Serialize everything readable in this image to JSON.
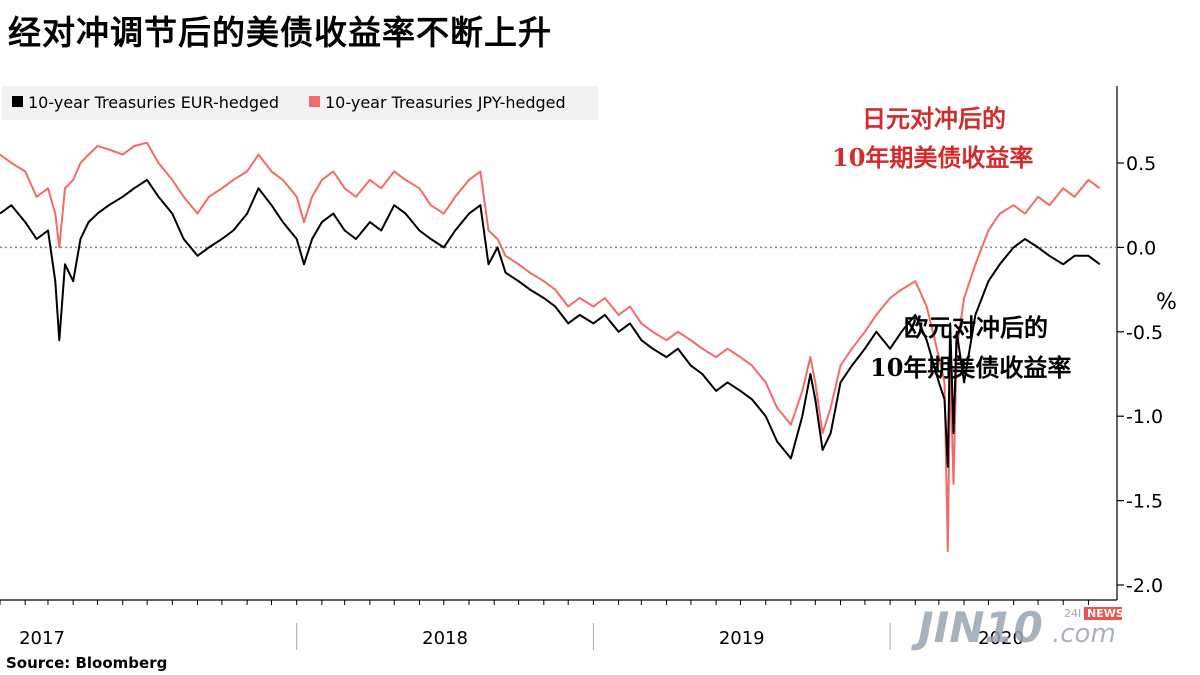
{
  "title": "经对冲调节后的美债收益率不断上升",
  "source": "Source:  Bloomberg",
  "watermark": {
    "brand": "JIN10",
    "suffix": ".com",
    "tag_left": "24I",
    "tag_right": "NEWS"
  },
  "chart_data": {
    "type": "line",
    "title": "经对冲调节后的美债收益率不断上升",
    "y_unit": "%",
    "ylim": [
      -2.0,
      0.8
    ],
    "y_ticks": [
      0.5,
      0.0,
      -0.5,
      -1.0,
      -1.5,
      -2.0
    ],
    "y_tick_labels": [
      "0.5",
      "0.0",
      "-0.5",
      "-1.0",
      "-1.5",
      "-2.0"
    ],
    "x_range": [
      "2017-01-01",
      "2020-09-30"
    ],
    "year_labels": [
      "2017",
      "2018",
      "2019",
      "2020"
    ],
    "zero_line": "dotted",
    "legend": {
      "placement": "top-left"
    },
    "annotations": [
      {
        "text": [
          "日元对冲后的",
          "10年期美债收益率"
        ],
        "color": "#d12b2b",
        "series": "JPY"
      },
      {
        "text": [
          "欧元对冲后的",
          "10年期美债收益率"
        ],
        "color": "#000000",
        "series": "EUR"
      }
    ],
    "series": [
      {
        "name": "10-year Treasuries EUR-hedged",
        "color": "#000000",
        "points": [
          [
            "2017-01-01",
            0.2
          ],
          [
            "2017-01-15",
            0.25
          ],
          [
            "2017-02-01",
            0.15
          ],
          [
            "2017-02-15",
            0.05
          ],
          [
            "2017-03-01",
            0.1
          ],
          [
            "2017-03-10",
            -0.2
          ],
          [
            "2017-03-15",
            -0.55
          ],
          [
            "2017-03-22",
            -0.1
          ],
          [
            "2017-04-01",
            -0.2
          ],
          [
            "2017-04-10",
            0.05
          ],
          [
            "2017-04-20",
            0.15
          ],
          [
            "2017-05-01",
            0.2
          ],
          [
            "2017-05-15",
            0.25
          ],
          [
            "2017-06-01",
            0.3
          ],
          [
            "2017-06-15",
            0.35
          ],
          [
            "2017-07-01",
            0.4
          ],
          [
            "2017-07-15",
            0.3
          ],
          [
            "2017-08-01",
            0.2
          ],
          [
            "2017-08-15",
            0.05
          ],
          [
            "2017-09-01",
            -0.05
          ],
          [
            "2017-09-15",
            0.0
          ],
          [
            "2017-10-01",
            0.05
          ],
          [
            "2017-10-15",
            0.1
          ],
          [
            "2017-11-01",
            0.2
          ],
          [
            "2017-11-15",
            0.35
          ],
          [
            "2017-12-01",
            0.25
          ],
          [
            "2017-12-15",
            0.15
          ],
          [
            "2018-01-01",
            0.05
          ],
          [
            "2018-01-10",
            -0.1
          ],
          [
            "2018-01-20",
            0.05
          ],
          [
            "2018-02-01",
            0.15
          ],
          [
            "2018-02-15",
            0.2
          ],
          [
            "2018-03-01",
            0.1
          ],
          [
            "2018-03-15",
            0.05
          ],
          [
            "2018-04-01",
            0.15
          ],
          [
            "2018-04-15",
            0.1
          ],
          [
            "2018-05-01",
            0.25
          ],
          [
            "2018-05-15",
            0.2
          ],
          [
            "2018-06-01",
            0.1
          ],
          [
            "2018-06-15",
            0.05
          ],
          [
            "2018-07-01",
            0.0
          ],
          [
            "2018-07-15",
            0.1
          ],
          [
            "2018-08-01",
            0.2
          ],
          [
            "2018-08-15",
            0.25
          ],
          [
            "2018-08-25",
            -0.1
          ],
          [
            "2018-09-05",
            0.0
          ],
          [
            "2018-09-15",
            -0.15
          ],
          [
            "2018-10-01",
            -0.2
          ],
          [
            "2018-10-15",
            -0.25
          ],
          [
            "2018-11-01",
            -0.3
          ],
          [
            "2018-11-15",
            -0.35
          ],
          [
            "2018-12-01",
            -0.45
          ],
          [
            "2018-12-15",
            -0.4
          ],
          [
            "2019-01-01",
            -0.45
          ],
          [
            "2019-01-15",
            -0.4
          ],
          [
            "2019-02-01",
            -0.5
          ],
          [
            "2019-02-15",
            -0.45
          ],
          [
            "2019-03-01",
            -0.55
          ],
          [
            "2019-03-15",
            -0.6
          ],
          [
            "2019-04-01",
            -0.65
          ],
          [
            "2019-04-15",
            -0.6
          ],
          [
            "2019-05-01",
            -0.7
          ],
          [
            "2019-05-15",
            -0.75
          ],
          [
            "2019-06-01",
            -0.85
          ],
          [
            "2019-06-15",
            -0.8
          ],
          [
            "2019-07-01",
            -0.85
          ],
          [
            "2019-07-15",
            -0.9
          ],
          [
            "2019-08-01",
            -1.0
          ],
          [
            "2019-08-15",
            -1.15
          ],
          [
            "2019-09-01",
            -1.25
          ],
          [
            "2019-09-15",
            -1.0
          ],
          [
            "2019-09-25",
            -0.75
          ],
          [
            "2019-10-01",
            -0.9
          ],
          [
            "2019-10-10",
            -1.2
          ],
          [
            "2019-10-20",
            -1.1
          ],
          [
            "2019-11-01",
            -0.8
          ],
          [
            "2019-11-15",
            -0.7
          ],
          [
            "2019-12-01",
            -0.6
          ],
          [
            "2019-12-15",
            -0.5
          ],
          [
            "2020-01-01",
            -0.6
          ],
          [
            "2020-01-15",
            -0.5
          ],
          [
            "2020-02-01",
            -0.4
          ],
          [
            "2020-02-15",
            -0.55
          ],
          [
            "2020-03-01",
            -0.8
          ],
          [
            "2020-03-08",
            -0.9
          ],
          [
            "2020-03-12",
            -1.3
          ],
          [
            "2020-03-15",
            -0.45
          ],
          [
            "2020-03-19",
            -1.1
          ],
          [
            "2020-03-23",
            -0.5
          ],
          [
            "2020-04-01",
            -0.8
          ],
          [
            "2020-04-15",
            -0.4
          ],
          [
            "2020-05-01",
            -0.2
          ],
          [
            "2020-05-15",
            -0.1
          ],
          [
            "2020-06-01",
            0.0
          ],
          [
            "2020-06-15",
            0.05
          ],
          [
            "2020-07-01",
            0.0
          ],
          [
            "2020-07-15",
            -0.05
          ],
          [
            "2020-08-01",
            -0.1
          ],
          [
            "2020-08-15",
            -0.05
          ],
          [
            "2020-09-01",
            -0.05
          ],
          [
            "2020-09-15",
            -0.1
          ]
        ]
      },
      {
        "name": "10-year Treasuries JPY-hedged",
        "color": "#f26b6b",
        "points": [
          [
            "2017-01-01",
            0.55
          ],
          [
            "2017-01-15",
            0.5
          ],
          [
            "2017-02-01",
            0.45
          ],
          [
            "2017-02-15",
            0.3
          ],
          [
            "2017-03-01",
            0.35
          ],
          [
            "2017-03-10",
            0.2
          ],
          [
            "2017-03-15",
            0.0
          ],
          [
            "2017-03-22",
            0.35
          ],
          [
            "2017-04-01",
            0.4
          ],
          [
            "2017-04-10",
            0.5
          ],
          [
            "2017-04-20",
            0.55
          ],
          [
            "2017-05-01",
            0.6
          ],
          [
            "2017-05-15",
            0.58
          ],
          [
            "2017-06-01",
            0.55
          ],
          [
            "2017-06-15",
            0.6
          ],
          [
            "2017-07-01",
            0.62
          ],
          [
            "2017-07-15",
            0.5
          ],
          [
            "2017-08-01",
            0.4
          ],
          [
            "2017-08-15",
            0.3
          ],
          [
            "2017-09-01",
            0.2
          ],
          [
            "2017-09-15",
            0.3
          ],
          [
            "2017-10-01",
            0.35
          ],
          [
            "2017-10-15",
            0.4
          ],
          [
            "2017-11-01",
            0.45
          ],
          [
            "2017-11-15",
            0.55
          ],
          [
            "2017-12-01",
            0.45
          ],
          [
            "2017-12-15",
            0.4
          ],
          [
            "2018-01-01",
            0.3
          ],
          [
            "2018-01-10",
            0.15
          ],
          [
            "2018-01-20",
            0.3
          ],
          [
            "2018-02-01",
            0.4
          ],
          [
            "2018-02-15",
            0.45
          ],
          [
            "2018-03-01",
            0.35
          ],
          [
            "2018-03-15",
            0.3
          ],
          [
            "2018-04-01",
            0.4
          ],
          [
            "2018-04-15",
            0.35
          ],
          [
            "2018-05-01",
            0.45
          ],
          [
            "2018-05-15",
            0.4
          ],
          [
            "2018-06-01",
            0.35
          ],
          [
            "2018-06-15",
            0.25
          ],
          [
            "2018-07-01",
            0.2
          ],
          [
            "2018-07-15",
            0.3
          ],
          [
            "2018-08-01",
            0.4
          ],
          [
            "2018-08-15",
            0.45
          ],
          [
            "2018-08-25",
            0.1
          ],
          [
            "2018-09-05",
            0.05
          ],
          [
            "2018-09-15",
            -0.05
          ],
          [
            "2018-10-01",
            -0.1
          ],
          [
            "2018-10-15",
            -0.15
          ],
          [
            "2018-11-01",
            -0.2
          ],
          [
            "2018-11-15",
            -0.25
          ],
          [
            "2018-12-01",
            -0.35
          ],
          [
            "2018-12-15",
            -0.3
          ],
          [
            "2019-01-01",
            -0.35
          ],
          [
            "2019-01-15",
            -0.3
          ],
          [
            "2019-02-01",
            -0.4
          ],
          [
            "2019-02-15",
            -0.35
          ],
          [
            "2019-03-01",
            -0.45
          ],
          [
            "2019-03-15",
            -0.5
          ],
          [
            "2019-04-01",
            -0.55
          ],
          [
            "2019-04-15",
            -0.5
          ],
          [
            "2019-05-01",
            -0.55
          ],
          [
            "2019-05-15",
            -0.6
          ],
          [
            "2019-06-01",
            -0.65
          ],
          [
            "2019-06-15",
            -0.6
          ],
          [
            "2019-07-01",
            -0.65
          ],
          [
            "2019-07-15",
            -0.7
          ],
          [
            "2019-08-01",
            -0.8
          ],
          [
            "2019-08-15",
            -0.95
          ],
          [
            "2019-09-01",
            -1.05
          ],
          [
            "2019-09-15",
            -0.85
          ],
          [
            "2019-09-25",
            -0.65
          ],
          [
            "2019-10-01",
            -0.8
          ],
          [
            "2019-10-10",
            -1.1
          ],
          [
            "2019-10-20",
            -0.95
          ],
          [
            "2019-11-01",
            -0.7
          ],
          [
            "2019-11-15",
            -0.6
          ],
          [
            "2019-12-01",
            -0.5
          ],
          [
            "2019-12-15",
            -0.4
          ],
          [
            "2020-01-01",
            -0.3
          ],
          [
            "2020-01-15",
            -0.25
          ],
          [
            "2020-02-01",
            -0.2
          ],
          [
            "2020-02-15",
            -0.35
          ],
          [
            "2020-03-01",
            -0.65
          ],
          [
            "2020-03-08",
            -0.8
          ],
          [
            "2020-03-12",
            -1.8
          ],
          [
            "2020-03-15",
            -0.7
          ],
          [
            "2020-03-19",
            -1.4
          ],
          [
            "2020-03-23",
            -0.6
          ],
          [
            "2020-04-01",
            -0.3
          ],
          [
            "2020-04-15",
            -0.1
          ],
          [
            "2020-05-01",
            0.1
          ],
          [
            "2020-05-15",
            0.2
          ],
          [
            "2020-06-01",
            0.25
          ],
          [
            "2020-06-15",
            0.2
          ],
          [
            "2020-07-01",
            0.3
          ],
          [
            "2020-07-15",
            0.25
          ],
          [
            "2020-08-01",
            0.35
          ],
          [
            "2020-08-15",
            0.3
          ],
          [
            "2020-09-01",
            0.4
          ],
          [
            "2020-09-15",
            0.35
          ]
        ]
      }
    ]
  }
}
